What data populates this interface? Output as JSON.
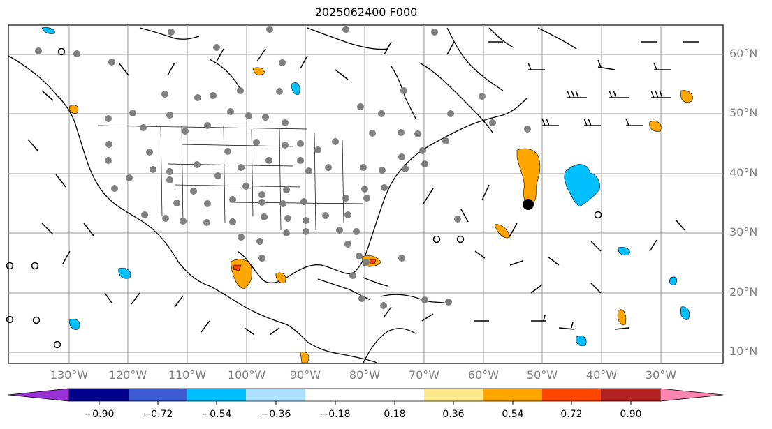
{
  "title": "2025062400 F000",
  "lat_labels": [
    "60°N",
    "50°N",
    "40°N",
    "30°N",
    "20°N",
    "10°N"
  ],
  "lon_labels": [
    "130°W",
    "120°W",
    "110°W",
    "100°W",
    "90°W",
    "80°W",
    "70°W",
    "60°W",
    "50°W",
    "40°W",
    "30°W"
  ],
  "colorbar": {
    "ticks": [
      "−0.90",
      "−0.72",
      "−0.54",
      "−0.36",
      "−0.18",
      "0.18",
      "0.36",
      "0.54",
      "0.72",
      "0.90"
    ],
    "colors": [
      "#9b30d9",
      "#00008b",
      "#3c5ad2",
      "#00bfff",
      "#addfff",
      "#ffffff",
      "#fde98b",
      "#ffa500",
      "#ff4500",
      "#b22222",
      "#ff85b0"
    ]
  },
  "markers": {
    "storm_center": {
      "lon": -53,
      "lat": 35
    }
  }
}
